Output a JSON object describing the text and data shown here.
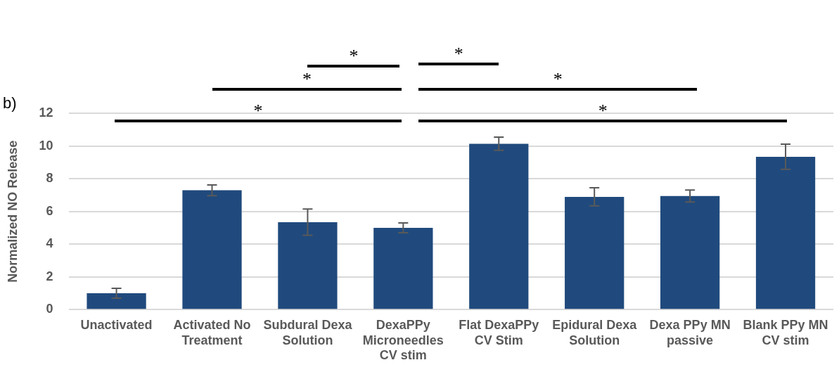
{
  "chart_data": {
    "type": "bar",
    "title": "b)",
    "ylabel": "Normalized NO Release",
    "categories": [
      "Unactivated",
      "Activated No Treatment",
      "Subdural Dexa Solution",
      "DexaPPy Microneedles CV stim",
      "Flat DexaPPy CV Stim",
      "Epidural Dexa Solution",
      "Dexa PPy MN passive",
      "Blank PPy MN CV stim"
    ],
    "values": [
      1.0,
      7.3,
      5.35,
      5.0,
      10.15,
      6.9,
      6.95,
      9.35
    ],
    "errors": [
      0.3,
      0.33,
      0.8,
      0.3,
      0.4,
      0.55,
      0.37,
      0.77
    ],
    "color": "#204a7d",
    "ylim": [
      0,
      12
    ],
    "yticks": [
      0,
      2,
      4,
      6,
      8,
      10,
      12
    ],
    "grid": "y",
    "annotations": [
      "*",
      "*",
      "*",
      "*",
      "*",
      "*"
    ]
  }
}
